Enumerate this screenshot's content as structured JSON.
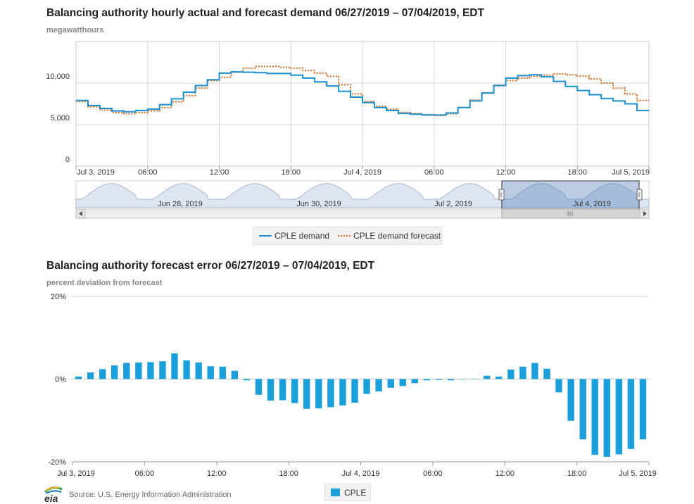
{
  "chart1": {
    "title": "Balancing authority hourly actual and forecast demand 06/27/2019 – 07/04/2019, EDT",
    "units": "megawatthours",
    "y_ticks": [
      "0",
      "5,000",
      "10,000"
    ],
    "x_ticks": [
      "Jul 3, 2019",
      "06:00",
      "12:00",
      "18:00",
      "Jul 4, 2019",
      "06:00",
      "12:00",
      "18:00",
      "Jul 5, 2019"
    ],
    "navigator_labels": [
      "Jun 28, 2019",
      "Jun 30, 2019",
      "Jul 2, 2019",
      "Jul 4, 2019"
    ],
    "legend": {
      "demand": "CPLE demand",
      "forecast": "CPLE demand forecast"
    },
    "colors": {
      "demand": "#1b8fd0",
      "forecast": "#d2691e"
    }
  },
  "chart2": {
    "title": "Balancing authority forecast error 06/27/2019 – 07/04/2019, EDT",
    "units": "percent deviation from forecast",
    "y_ticks": [
      "20%",
      "0%",
      "-20%"
    ],
    "x_ticks": [
      "Jul 3, 2019",
      "06:00",
      "12:00",
      "18:00",
      "Jul 4, 2019",
      "06:00",
      "12:00",
      "18:00",
      "Jul 5, 2019"
    ],
    "legend": "CPLE",
    "color": "#1b9fdb"
  },
  "source": "Source: U.S. Energy Information Administration",
  "logo_text": "eia",
  "chart_data": [
    {
      "type": "line",
      "title": "Balancing authority hourly actual and forecast demand 06/27/2019 – 07/04/2019, EDT",
      "ylabel": "megawatthours",
      "ylim": [
        0,
        15000
      ],
      "x_range": [
        "Jul 3, 2019 00:00",
        "Jul 5, 2019 00:00"
      ],
      "x_hours": [
        0,
        1,
        2,
        3,
        4,
        5,
        6,
        7,
        8,
        9,
        10,
        11,
        12,
        13,
        14,
        15,
        16,
        17,
        18,
        19,
        20,
        21,
        22,
        23,
        24,
        25,
        26,
        27,
        28,
        29,
        30,
        31,
        32,
        33,
        34,
        35,
        36,
        37,
        38,
        39,
        40,
        41,
        42,
        43,
        44,
        45,
        46,
        47
      ],
      "series": [
        {
          "name": "CPLE demand",
          "values": [
            7900,
            7300,
            6950,
            6650,
            6550,
            6700,
            6850,
            7400,
            8100,
            8900,
            9700,
            10400,
            11200,
            11350,
            11300,
            11250,
            11150,
            11150,
            10950,
            10600,
            10150,
            9650,
            9000,
            8300,
            7650,
            7050,
            6700,
            6350,
            6250,
            6150,
            6150,
            6400,
            7050,
            7850,
            8800,
            9700,
            10600,
            10900,
            11000,
            10750,
            10200,
            9600,
            9100,
            8600,
            8150,
            7850,
            7500,
            6700
          ]
        },
        {
          "name": "CPLE demand forecast",
          "values": [
            7800,
            7150,
            6750,
            6450,
            6300,
            6450,
            6650,
            7050,
            7750,
            8500,
            9400,
            10300,
            10700,
            11300,
            11800,
            12000,
            12000,
            11900,
            11800,
            11500,
            11200,
            10800,
            9800,
            8700,
            7800,
            7200,
            6850,
            6450,
            6350,
            6200,
            6100,
            6300,
            7050,
            7950,
            8800,
            9750,
            10300,
            10600,
            10800,
            10950,
            11100,
            11000,
            10850,
            10500,
            10000,
            9400,
            8700,
            7900
          ]
        }
      ]
    },
    {
      "type": "bar",
      "title": "Balancing authority forecast error 06/27/2019 – 07/04/2019, EDT",
      "ylabel": "percent deviation from forecast",
      "ylim": [
        -20,
        20
      ],
      "x_range": [
        "Jul 3, 2019 00:00",
        "Jul 5, 2019 00:00"
      ],
      "x_hours": [
        0,
        1,
        2,
        3,
        4,
        5,
        6,
        7,
        8,
        9,
        10,
        11,
        12,
        13,
        14,
        15,
        16,
        17,
        18,
        19,
        20,
        21,
        22,
        23,
        24,
        25,
        26,
        27,
        28,
        29,
        30,
        31,
        32,
        33,
        34,
        35,
        36,
        37,
        38,
        39,
        40,
        41,
        42,
        43,
        44,
        45,
        46,
        47
      ],
      "series": [
        {
          "name": "CPLE",
          "values": [
            0.6,
            1.6,
            2.4,
            3.3,
            3.9,
            4.0,
            4.1,
            4.3,
            6.2,
            4.5,
            4.0,
            3.1,
            3.0,
            2.0,
            -0.3,
            -3.8,
            -5.2,
            -5.1,
            -5.8,
            -7.2,
            -7.1,
            -6.8,
            -6.4,
            -5.7,
            -3.6,
            -3.0,
            -2.1,
            -1.7,
            -1.0,
            -0.3,
            -0.2,
            -0.3,
            -0.1,
            0.1,
            0.8,
            0.6,
            2.3,
            3.0,
            3.9,
            2.5,
            -3.2,
            -10.1,
            -14.6,
            -18.3,
            -18.8,
            -18.2,
            -16.9,
            -14.6
          ]
        }
      ]
    }
  ]
}
